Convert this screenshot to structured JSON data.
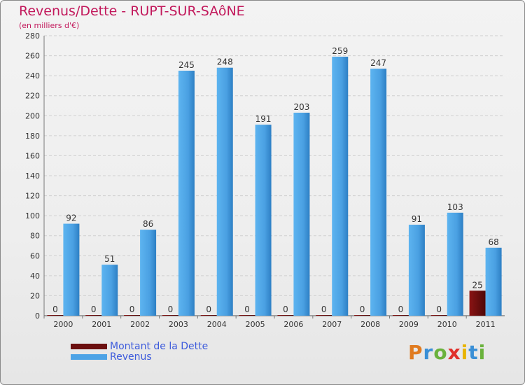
{
  "chart_data": {
    "type": "bar",
    "title": "Revenus/Dette - RUPT-SUR-SAôNE",
    "subtitle": "(en milliers d'€)",
    "categories": [
      "2000",
      "2001",
      "2002",
      "2003",
      "2004",
      "2005",
      "2006",
      "2007",
      "2008",
      "2009",
      "2010",
      "2011"
    ],
    "series": [
      {
        "name": "Montant de la Dette",
        "color": "#6b0f0f",
        "values": [
          0,
          0,
          0,
          0,
          0,
          0,
          0,
          0,
          0,
          0,
          0,
          25
        ]
      },
      {
        "name": "Revenus",
        "color": "#4da3e6",
        "values": [
          92,
          51,
          86,
          245,
          248,
          191,
          203,
          259,
          247,
          91,
          103,
          68
        ]
      }
    ],
    "ylim": [
      0,
      280
    ],
    "yticks": [
      0,
      20,
      40,
      60,
      80,
      100,
      120,
      140,
      160,
      180,
      200,
      220,
      240,
      260,
      280
    ],
    "grid": true,
    "legend_position": "bottom-left"
  },
  "brand": {
    "letters": [
      "P",
      "r",
      "o",
      "x",
      "i",
      "t",
      "i"
    ],
    "colors": [
      "#e07b20",
      "#3a8fd6",
      "#6ab23c",
      "#e0302a",
      "#e8b400",
      "#3a8fd6",
      "#6ab23c"
    ]
  }
}
